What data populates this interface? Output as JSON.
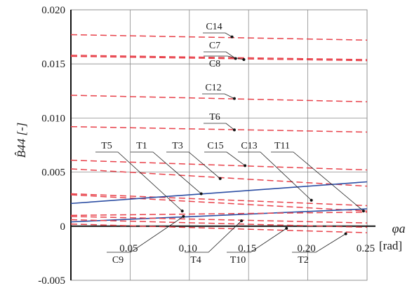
{
  "chart_data": {
    "type": "line",
    "x_label": "φa",
    "x_unit": "[rad]",
    "y_label": "B̂44 [-]",
    "xlim": [
      0,
      0.25
    ],
    "ylim": [
      -0.005,
      0.02
    ],
    "x_ticks": [
      {
        "value": 0.05,
        "label": "0.05"
      },
      {
        "value": 0.1,
        "label": "0.10"
      },
      {
        "value": 0.15,
        "label": "0.15"
      },
      {
        "value": 0.2,
        "label": "0.20"
      },
      {
        "value": 0.25,
        "label": "0.25"
      }
    ],
    "y_ticks": [
      {
        "value": 0.02,
        "label": "0.020"
      },
      {
        "value": 0.015,
        "label": "0.015"
      },
      {
        "value": 0.01,
        "label": "0.010"
      },
      {
        "value": 0.005,
        "label": "0.005"
      },
      {
        "value": 0,
        "label": "0"
      },
      {
        "value": -0.005,
        "label": "-0.005"
      }
    ],
    "grid": true,
    "colors": {
      "red_dashed": "#e8414a",
      "blue_solid": "#2c4ea3",
      "grid": "#8c8c8c",
      "axis": "#111111"
    },
    "series": [
      {
        "name": "C14",
        "style": "red-dashed",
        "x": [
          0,
          0.25
        ],
        "y": [
          0.0177,
          0.0172
        ]
      },
      {
        "name": "C7",
        "style": "red-dashed",
        "x": [
          0,
          0.25
        ],
        "y": [
          0.0158,
          0.0154
        ]
      },
      {
        "name": "C8",
        "style": "red-dashed",
        "x": [
          0,
          0.25
        ],
        "y": [
          0.0157,
          0.0153
        ]
      },
      {
        "name": "C12",
        "style": "red-dashed",
        "x": [
          0,
          0.25
        ],
        "y": [
          0.0121,
          0.0115
        ]
      },
      {
        "name": "T6",
        "style": "red-dashed",
        "x": [
          0,
          0.25
        ],
        "y": [
          0.0092,
          0.0087
        ]
      },
      {
        "name": "C15",
        "style": "red-dashed",
        "x": [
          0,
          0.25
        ],
        "y": [
          0.0061,
          0.0052
        ]
      },
      {
        "name": "T3",
        "style": "red-dashed",
        "x": [
          0,
          0.25
        ],
        "y": [
          0.0053,
          0.0037
        ]
      },
      {
        "name": "C13",
        "style": "red-dashed",
        "x": [
          0,
          0.25
        ],
        "y": [
          0.003,
          0.0019
        ]
      },
      {
        "name": "T5",
        "style": "red-dashed",
        "x": [
          0,
          0.25
        ],
        "y": [
          0.0029,
          0.0014
        ]
      },
      {
        "name": "T1",
        "style": "blue-solid",
        "x": [
          0,
          0.25
        ],
        "y": [
          0.0021,
          0.0041
        ]
      },
      {
        "name": "T11",
        "style": "blue-solid",
        "x": [
          0,
          0.25
        ],
        "y": [
          0.0004,
          0.0016
        ]
      },
      {
        "name": "C9",
        "style": "red-dashed",
        "x": [
          0,
          0.25
        ],
        "y": [
          0.001,
          0.0013
        ]
      },
      {
        "name": "T4",
        "style": "red-dashed",
        "x": [
          0,
          0.25
        ],
        "y": [
          0.0009,
          0.0003
        ]
      },
      {
        "name": "T10",
        "style": "red-dashed",
        "x": [
          0,
          0.25
        ],
        "y": [
          0.0006,
          -0.0001
        ]
      },
      {
        "name": "T2",
        "style": "red-dashed",
        "x": [
          0,
          0.25
        ],
        "y": [
          0.0002,
          -0.0006
        ]
      }
    ],
    "annotations": [
      {
        "text": "C14",
        "x": 0.136,
        "y": 0.0175
      },
      {
        "text": "C7",
        "x": 0.139,
        "y": 0.0155
      },
      {
        "text": "C8",
        "x": 0.146,
        "y": 0.0154
      },
      {
        "text": "C12",
        "x": 0.138,
        "y": 0.0118
      },
      {
        "text": "T6",
        "x": 0.138,
        "y": 0.0089
      },
      {
        "text": "T5",
        "x": 0.094,
        "y": 0.0014
      },
      {
        "text": "T1",
        "x": 0.11,
        "y": 0.003
      },
      {
        "text": "T3",
        "x": 0.126,
        "y": 0.0044
      },
      {
        "text": "C15",
        "x": 0.147,
        "y": 0.0056
      },
      {
        "text": "C13",
        "x": 0.203,
        "y": 0.0024
      },
      {
        "text": "T11",
        "x": 0.247,
        "y": 0.0014
      },
      {
        "text": "C9",
        "x": 0.095,
        "y": 0.0009
      },
      {
        "text": "T4",
        "x": 0.144,
        "y": 0.0005
      },
      {
        "text": "T10",
        "x": 0.182,
        "y": -0.0002
      },
      {
        "text": "T2",
        "x": 0.232,
        "y": -0.0007
      }
    ]
  }
}
